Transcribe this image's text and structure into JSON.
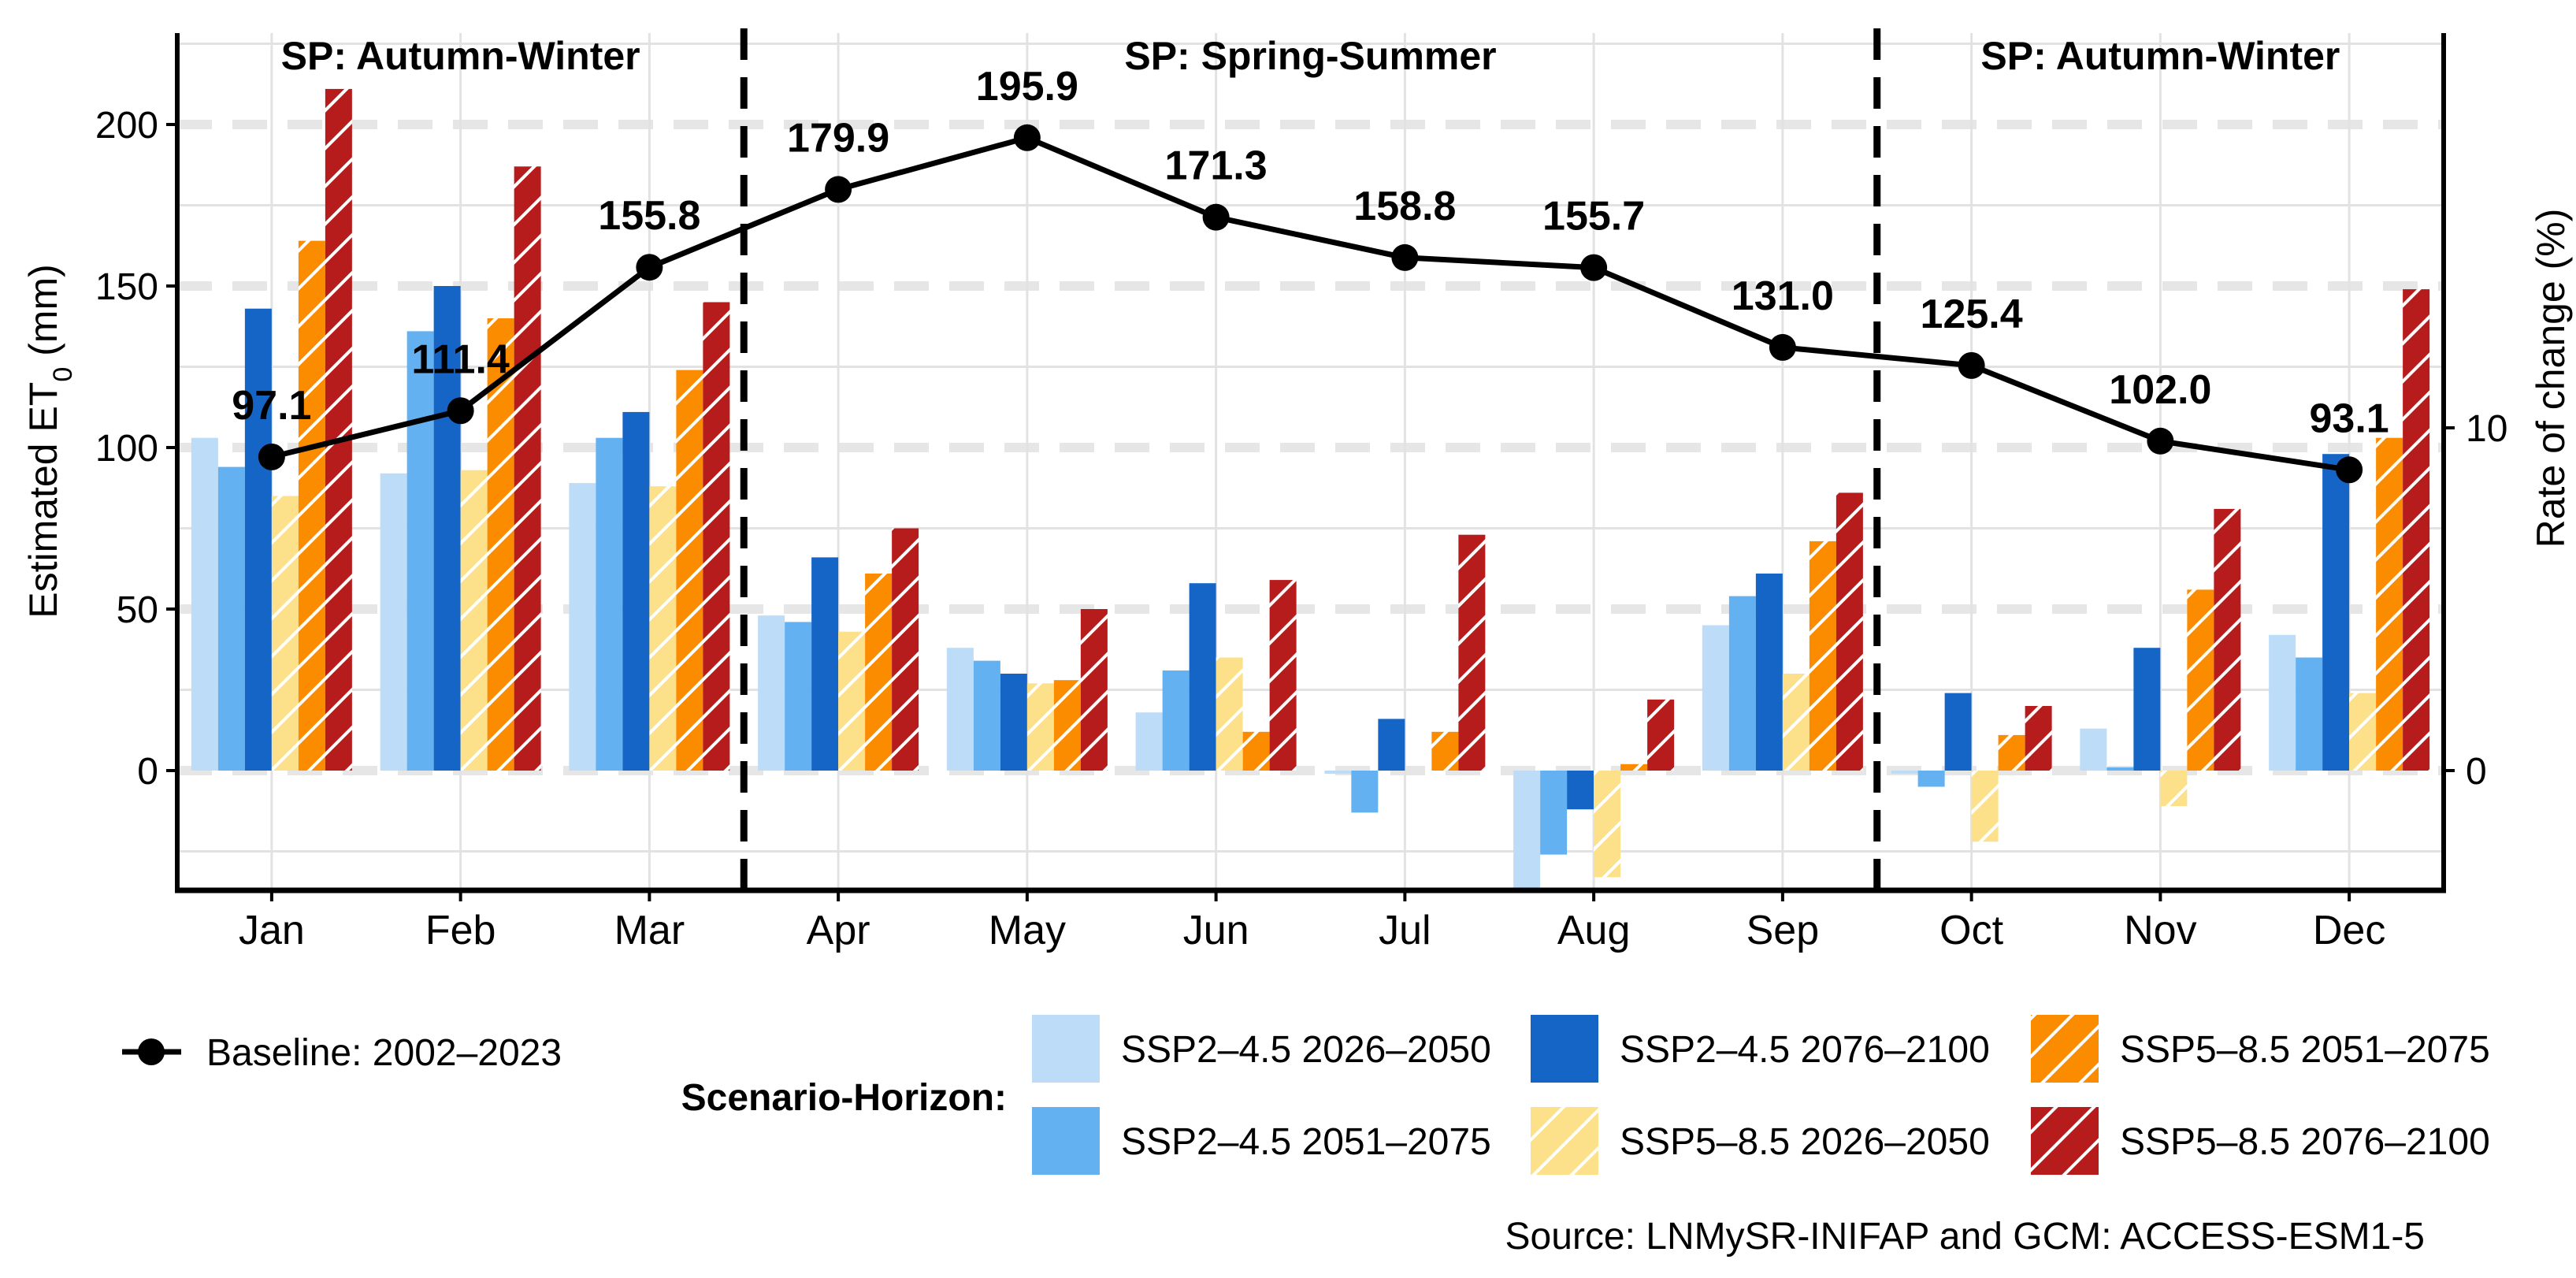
{
  "chart_data": {
    "type": "bar",
    "categories": [
      "Jan",
      "Feb",
      "Mar",
      "Apr",
      "May",
      "Jun",
      "Jul",
      "Aug",
      "Sep",
      "Oct",
      "Nov",
      "Dec"
    ],
    "y_left": {
      "label_main": "Estimated ET",
      "label_sub": "0",
      "label_unit": " (mm)",
      "ticks": [
        0,
        50,
        100,
        150,
        200
      ],
      "ylim": [
        -37,
        228
      ]
    },
    "y_right": {
      "label": "Rate of change (%)",
      "ticks": [
        0,
        10
      ]
    },
    "series": [
      {
        "name": "SSP2–4.5 2026–2050",
        "color": "#bddcf7",
        "hatch": false,
        "values": [
          103,
          92,
          89,
          48,
          38,
          18,
          -1,
          -37,
          45,
          -1,
          13,
          42
        ]
      },
      {
        "name": "SSP2–4.5 2051–2075",
        "color": "#64b1f2",
        "hatch": false,
        "values": [
          94,
          136,
          103,
          46,
          34,
          31,
          -13,
          -26,
          54,
          -5,
          1,
          35
        ]
      },
      {
        "name": "SSP2–4.5 2076–2100",
        "color": "#1565c7",
        "hatch": false,
        "values": [
          143,
          150,
          111,
          66,
          30,
          58,
          16,
          -12,
          61,
          24,
          38,
          98
        ]
      },
      {
        "name": "SSP5–8.5 2026–2050",
        "color": "#fde08a",
        "hatch": true,
        "values": [
          85,
          93,
          88,
          43,
          27,
          35,
          0,
          -33,
          30,
          -22,
          -11,
          24
        ]
      },
      {
        "name": "SSP5–8.5 2051–2075",
        "color": "#fb8c00",
        "hatch": true,
        "values": [
          164,
          140,
          124,
          61,
          28,
          12,
          12,
          2,
          71,
          11,
          56,
          103
        ]
      },
      {
        "name": "SSP5–8.5 2076–2100",
        "color": "#b71c1c",
        "hatch": true,
        "values": [
          211,
          187,
          145,
          75,
          50,
          59,
          73,
          22,
          86,
          20,
          81,
          149
        ]
      }
    ],
    "baseline": {
      "name": "Baseline: 2002–2023",
      "values": [
        97.1,
        111.4,
        155.8,
        179.9,
        195.9,
        171.3,
        158.8,
        155.7,
        131.0,
        125.4,
        102.0,
        93.1
      ],
      "labels": [
        "97.1",
        "111.4",
        "155.8",
        "179.9",
        "195.9",
        "171.3",
        "158.8",
        "155.7",
        "131.0",
        "125.4",
        "102.0",
        "93.1"
      ]
    },
    "periods": [
      {
        "label": "SP: Autumn-Winter",
        "from": 0,
        "to": 2
      },
      {
        "label": "SP: Spring-Summer",
        "from": 3,
        "to": 8
      },
      {
        "label": "SP: Autumn-Winter",
        "from": 9,
        "to": 11
      }
    ],
    "dividers_after": [
      2,
      8
    ]
  },
  "legend": {
    "title": "Scenario-Horizon:",
    "baseline_label": "Baseline: 2002–2023"
  },
  "source": "Source: LNMySR-INIFAP and GCM: ACCESS-ESM1-5",
  "colors": {
    "axis": "#000000",
    "grid": "#e2e2e2",
    "grid_dash": "#e6e6e6",
    "hatch_line": "#ffffff"
  }
}
